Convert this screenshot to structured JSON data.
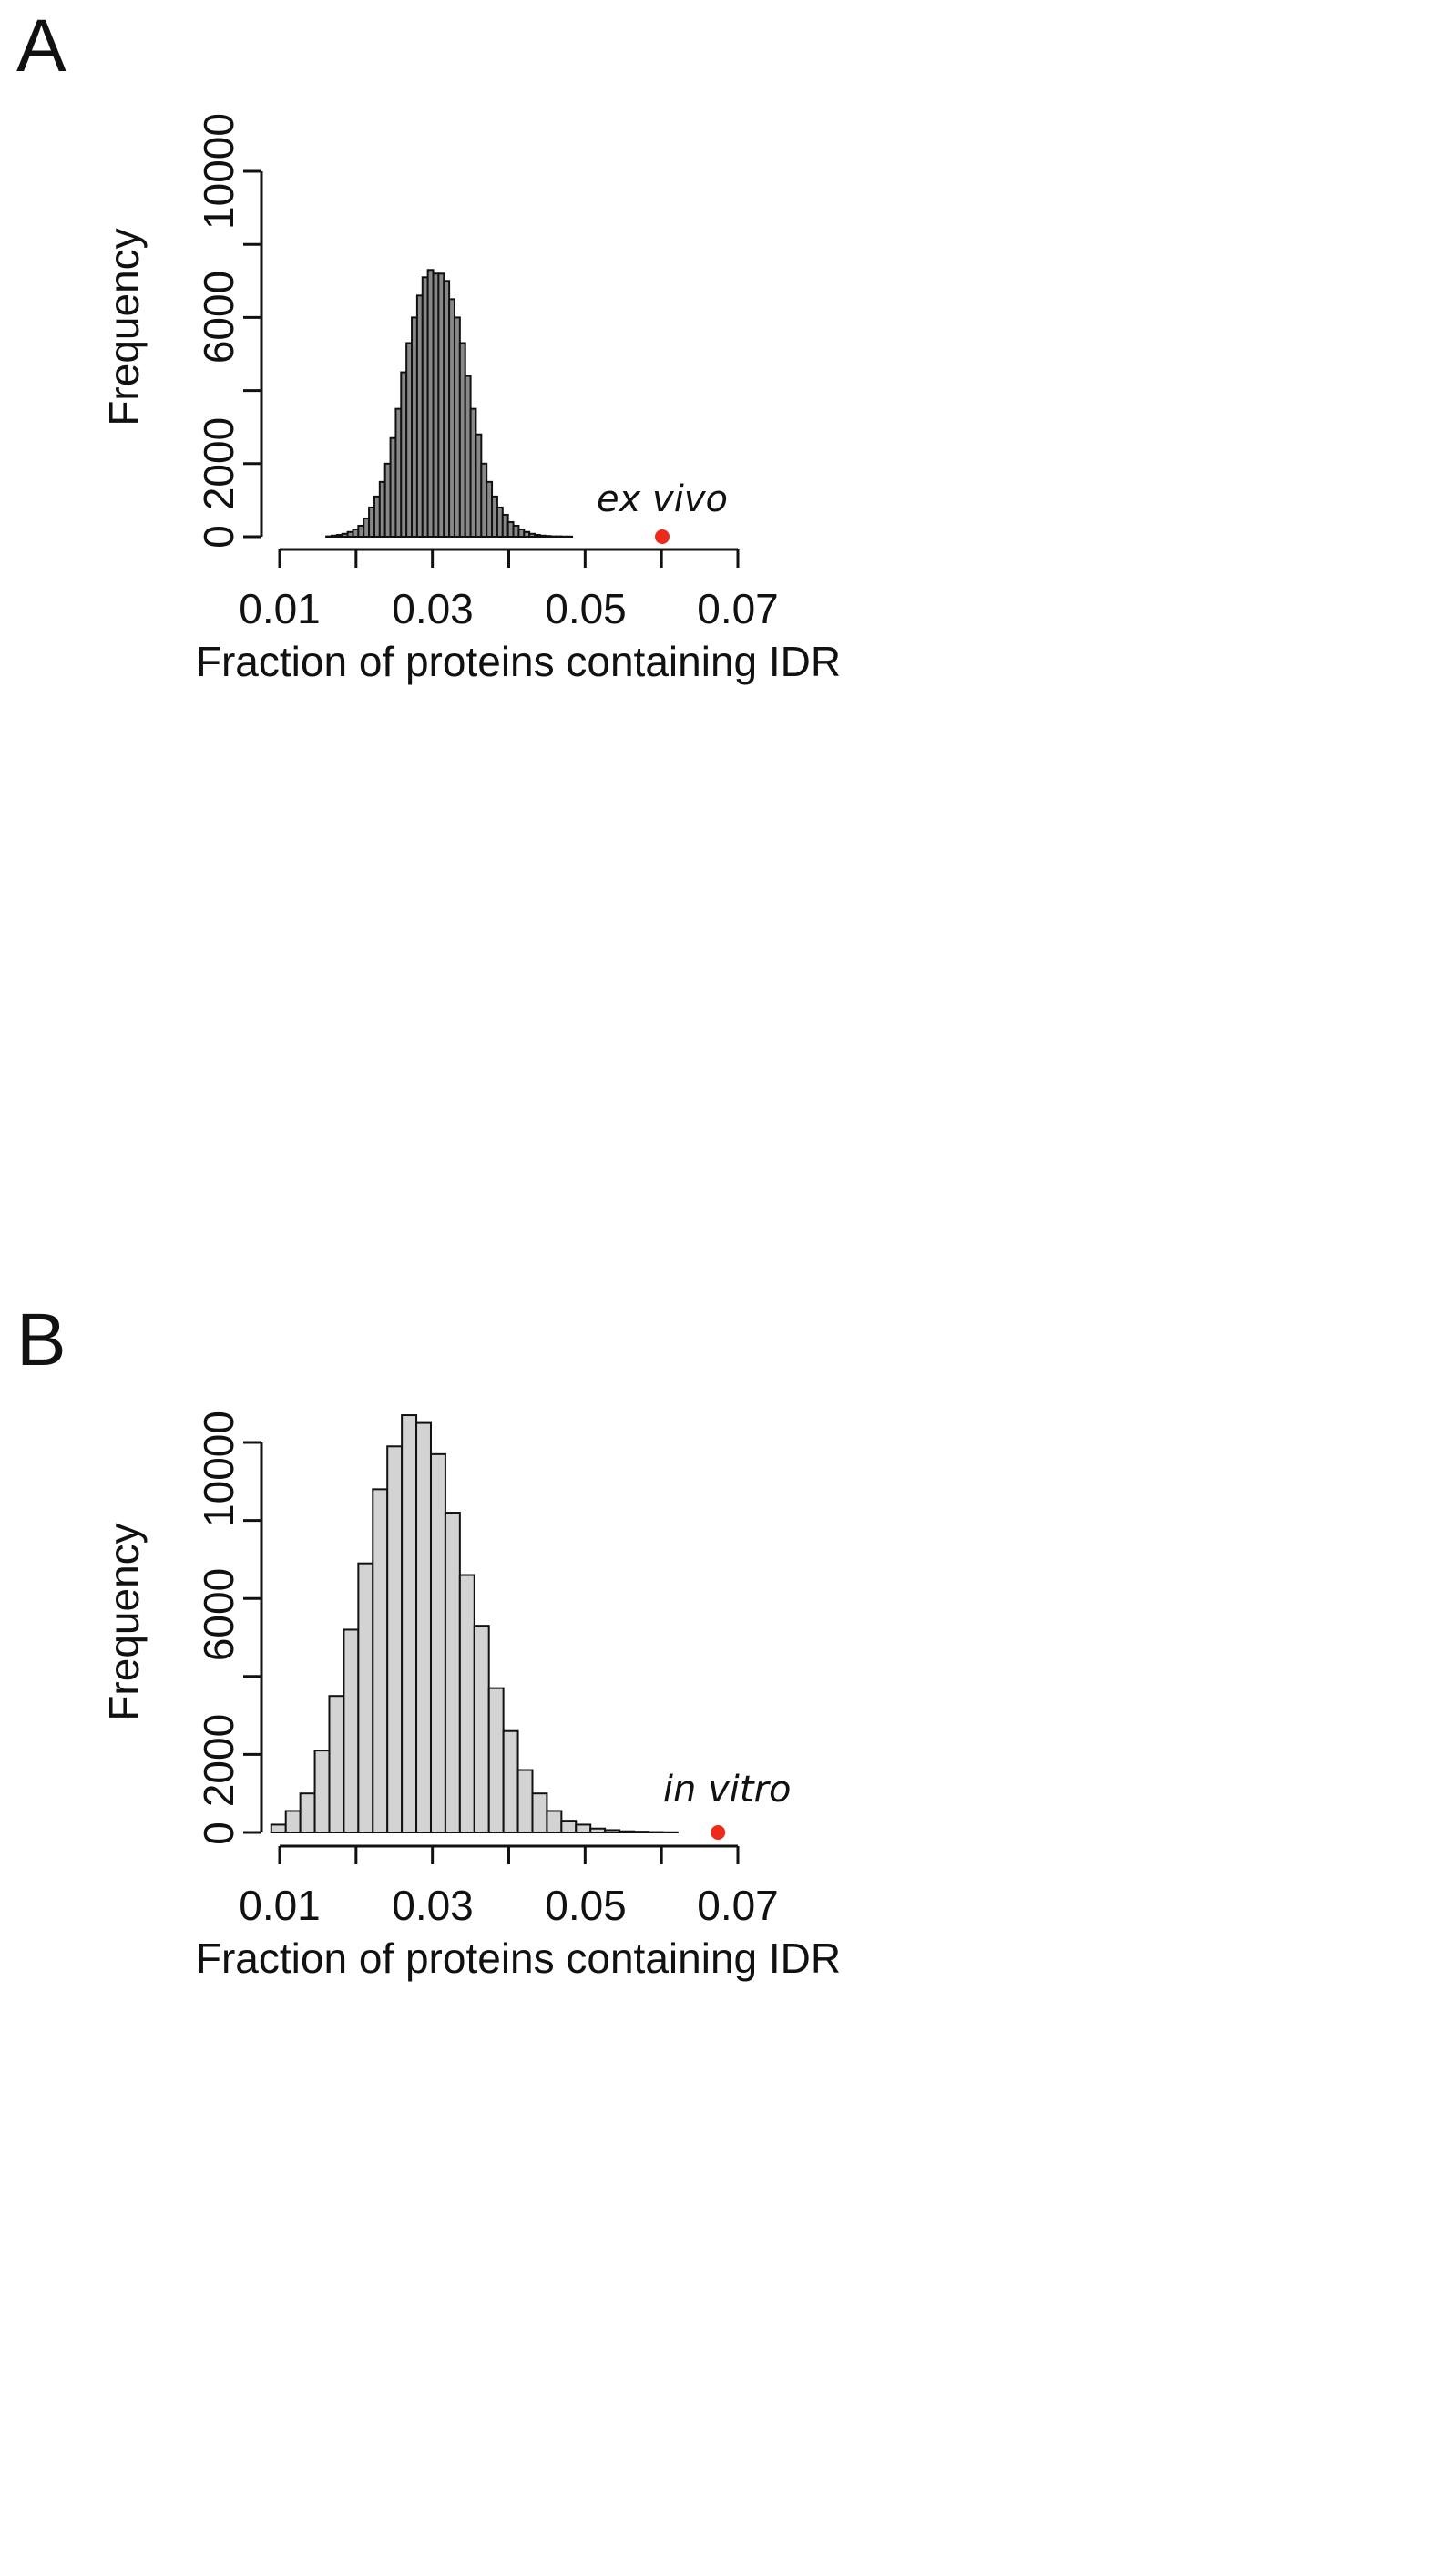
{
  "chart_data": [
    {
      "panel": "A",
      "type": "bar",
      "title": "",
      "xlabel": "Fraction of proteins containing IDR",
      "ylabel": "Frequency",
      "xlim": [
        0.01,
        0.07
      ],
      "ylim": [
        0,
        10000
      ],
      "xticks": [
        0.01,
        0.03,
        0.05,
        0.07
      ],
      "xtick_labels": [
        "0.01",
        "0.03",
        "0.05",
        "0.07"
      ],
      "yticks": [
        0,
        2000,
        4000,
        6000,
        8000,
        10000
      ],
      "ytick_labels_shown": [
        "0",
        "2000",
        "6000",
        "10000"
      ],
      "bar_color": "#888888",
      "bin_width": 0.0007,
      "bins_start": 0.0091,
      "values": [
        0,
        0,
        0,
        0,
        0,
        0,
        0,
        0,
        0,
        0,
        10,
        30,
        50,
        80,
        130,
        200,
        300,
        500,
        800,
        1100,
        1500,
        2000,
        2700,
        3500,
        4500,
        5300,
        6000,
        6600,
        7100,
        7300,
        7200,
        7200,
        7000,
        6500,
        6000,
        5300,
        4400,
        3500,
        2800,
        2000,
        1500,
        1100,
        800,
        600,
        400,
        300,
        200,
        130,
        80,
        50,
        30,
        20,
        10,
        10,
        5,
        5
      ],
      "point": {
        "x": 0.0601,
        "y": 0,
        "label": "ex vivo",
        "color": "#ee2a1b"
      }
    },
    {
      "panel": "B",
      "type": "bar",
      "title": "",
      "xlabel": "Fraction of proteins containing IDR",
      "ylabel": "Frequency",
      "xlim": [
        0.01,
        0.07
      ],
      "ylim": [
        0,
        10000
      ],
      "xticks": [
        0.01,
        0.03,
        0.05,
        0.07
      ],
      "xtick_labels": [
        "0.01",
        "0.03",
        "0.05",
        "0.07"
      ],
      "yticks": [
        0,
        2000,
        4000,
        6000,
        8000,
        10000
      ],
      "ytick_labels_shown": [
        "0",
        "2000",
        "6000",
        "10000"
      ],
      "bar_color": "#d3d3d3",
      "bin_width": 0.0019,
      "bins_start": 0.0089,
      "values": [
        200,
        550,
        1000,
        2100,
        3500,
        5200,
        6900,
        8800,
        9900,
        10700,
        10500,
        9700,
        8200,
        6600,
        5300,
        3700,
        2600,
        1600,
        1000,
        550,
        300,
        200,
        100,
        60,
        30,
        20,
        10,
        5
      ],
      "point": {
        "x": 0.0674,
        "y": 0,
        "label": "in vitro",
        "color": "#ee2a1b"
      }
    }
  ],
  "panels": {
    "a": {
      "letter": "A",
      "xlabel": "Fraction of proteins containing IDR",
      "ylabel": "Frequency",
      "x_ticks": [
        "0.01",
        "0.03",
        "0.05",
        "0.07"
      ],
      "y_ticks": [
        "0",
        "2000",
        "6000",
        "10000"
      ],
      "annotation": "ex vivo"
    },
    "b": {
      "letter": "B",
      "xlabel": "Fraction of proteins containing IDR",
      "ylabel": "Frequency",
      "x_ticks": [
        "0.01",
        "0.03",
        "0.05",
        "0.07"
      ],
      "y_ticks": [
        "0",
        "2000",
        "6000",
        "10000"
      ],
      "annotation": "in vitro"
    }
  }
}
